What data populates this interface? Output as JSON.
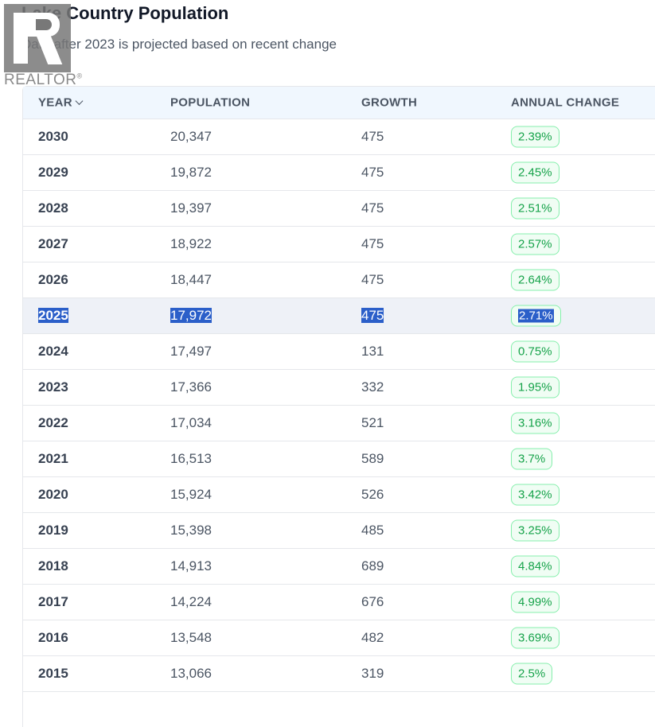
{
  "title": "Lake Country Population",
  "subtitle": "Data after 2023 is projected based on recent change",
  "logo": {
    "text": "REALTOR",
    "mark": "®"
  },
  "table": {
    "headers": {
      "year": "YEAR",
      "population": "POPULATION",
      "growth": "GROWTH",
      "annual_change": "ANNUAL CHANGE"
    },
    "sort": {
      "column": "year",
      "direction": "descending",
      "icon": "chevron-down-icon"
    },
    "selected_year": "2025",
    "badge_color": "#16a34a",
    "rows": [
      {
        "year": "2030",
        "population": "20,347",
        "growth": "475",
        "change": "2.39%"
      },
      {
        "year": "2029",
        "population": "19,872",
        "growth": "475",
        "change": "2.45%"
      },
      {
        "year": "2028",
        "population": "19,397",
        "growth": "475",
        "change": "2.51%"
      },
      {
        "year": "2027",
        "population": "18,922",
        "growth": "475",
        "change": "2.57%"
      },
      {
        "year": "2026",
        "population": "18,447",
        "growth": "475",
        "change": "2.64%"
      },
      {
        "year": "2025",
        "population": "17,972",
        "growth": "475",
        "change": "2.71%"
      },
      {
        "year": "2024",
        "population": "17,497",
        "growth": "131",
        "change": "0.75%"
      },
      {
        "year": "2023",
        "population": "17,366",
        "growth": "332",
        "change": "1.95%"
      },
      {
        "year": "2022",
        "population": "17,034",
        "growth": "521",
        "change": "3.16%"
      },
      {
        "year": "2021",
        "population": "16,513",
        "growth": "589",
        "change": "3.7%"
      },
      {
        "year": "2020",
        "population": "15,924",
        "growth": "526",
        "change": "3.42%"
      },
      {
        "year": "2019",
        "population": "15,398",
        "growth": "485",
        "change": "3.25%"
      },
      {
        "year": "2018",
        "population": "14,913",
        "growth": "689",
        "change": "4.84%"
      },
      {
        "year": "2017",
        "population": "14,224",
        "growth": "676",
        "change": "4.99%"
      },
      {
        "year": "2016",
        "population": "13,548",
        "growth": "482",
        "change": "3.69%"
      },
      {
        "year": "2015",
        "population": "13,066",
        "growth": "319",
        "change": "2.5%"
      }
    ]
  }
}
